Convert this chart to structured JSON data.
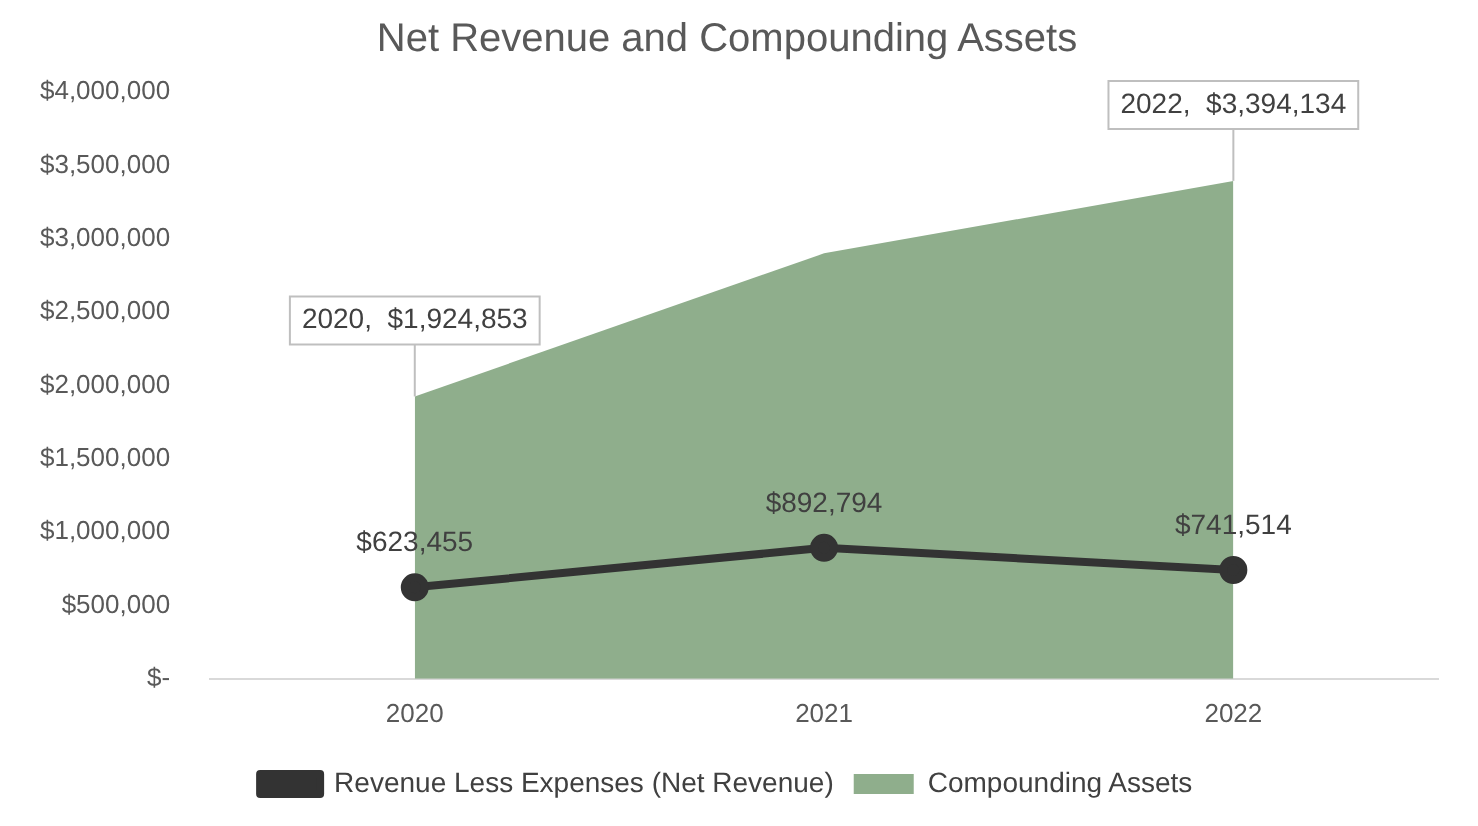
{
  "chart_data": {
    "type": "area",
    "title": "Net Revenue and Compounding Assets",
    "categories": [
      "2020",
      "2021",
      "2022"
    ],
    "series": [
      {
        "name": "Compounding Assets",
        "color": "#8fae8c",
        "values": [
          1924853,
          2900000,
          3394134
        ],
        "value_labels": [
          "2020,  $1,924,853",
          null,
          "2022,  $3,394,134"
        ]
      },
      {
        "name": "Revenue Less Expenses (Net Revenue)",
        "type": "line",
        "color": "#333333",
        "values": [
          623455,
          892794,
          741514
        ],
        "marker": "circle",
        "value_labels": [
          "$623,455",
          "$892,794",
          "$741,514"
        ]
      }
    ],
    "ylim": [
      0,
      4000000
    ],
    "yticks": [
      {
        "value": 0,
        "label": "$-"
      },
      {
        "value": 500000,
        "label": "$500,000"
      },
      {
        "value": 1000000,
        "label": "$1,000,000"
      },
      {
        "value": 1500000,
        "label": "$1,500,000"
      },
      {
        "value": 2000000,
        "label": "$2,000,000"
      },
      {
        "value": 2500000,
        "label": "$2,500,000"
      },
      {
        "value": 3000000,
        "label": "$3,000,000"
      },
      {
        "value": 3500000,
        "label": "$3,500,000"
      },
      {
        "value": 4000000,
        "label": "$4,000,000"
      }
    ],
    "grid": false,
    "legend": "bottom",
    "line_style": "solid"
  }
}
